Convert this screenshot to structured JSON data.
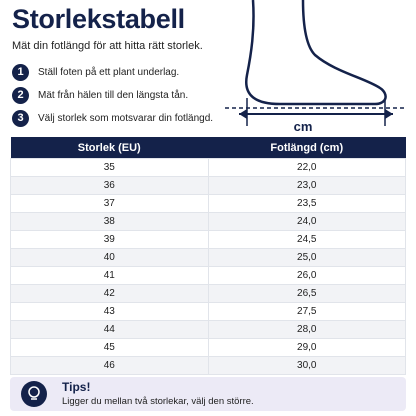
{
  "header": {
    "title": "Storlekstabell",
    "subtitle": "Mät din fotlängd för att hitta rätt storlek."
  },
  "steps": [
    {
      "number": "1",
      "text": "Ställ foten på ett plant underlag."
    },
    {
      "number": "2",
      "text": "Mät från hälen till den längsta tån."
    },
    {
      "number": "3",
      "text": "Välj storlek som motsvarar din fotlängd."
    }
  ],
  "illustration": {
    "unit": "cm"
  },
  "table": {
    "columns": [
      "Storlek (EU)",
      "Fotlängd (cm)"
    ],
    "rows": [
      [
        "35",
        "22,0"
      ],
      [
        "36",
        "23,0"
      ],
      [
        "37",
        "23,5"
      ],
      [
        "38",
        "24,0"
      ],
      [
        "39",
        "24,5"
      ],
      [
        "40",
        "25,0"
      ],
      [
        "41",
        "26,0"
      ],
      [
        "42",
        "26,5"
      ],
      [
        "43",
        "27,5"
      ],
      [
        "44",
        "28,0"
      ],
      [
        "45",
        "29,0"
      ],
      [
        "46",
        "30,0"
      ]
    ]
  },
  "tips": {
    "title": "Tips!",
    "text": "Ligger du mellan två storlekar, välj den större."
  }
}
